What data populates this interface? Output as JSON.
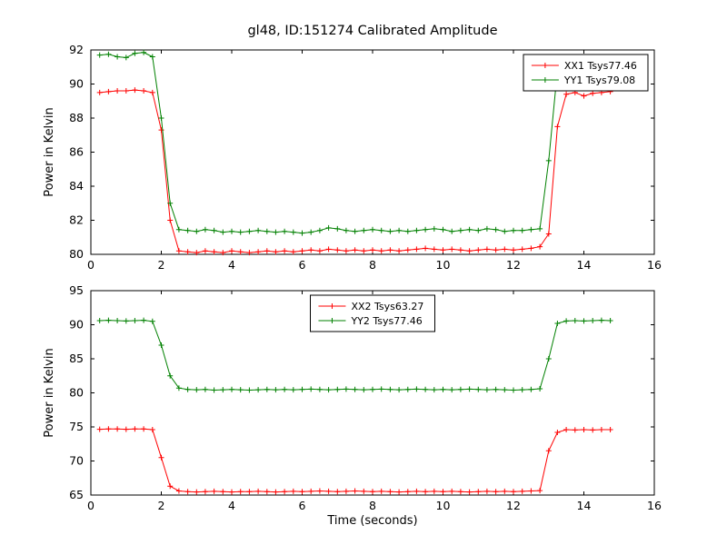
{
  "figure": {
    "title": "gl48, ID:151274 Calibrated Amplitude",
    "background": "#ffffff",
    "frame_color": "#000000"
  },
  "chart_data": [
    {
      "type": "line",
      "title": "gl48, ID:151274 Calibrated Amplitude",
      "xlabel": "",
      "ylabel": "Power in Kelvin",
      "xlim": [
        0,
        16
      ],
      "ylim": [
        80,
        92
      ],
      "xticks": [
        0,
        2,
        4,
        6,
        8,
        10,
        12,
        14,
        16
      ],
      "yticks": [
        80,
        82,
        84,
        86,
        88,
        90,
        92
      ],
      "grid": false,
      "legend_location": "upper right",
      "x": [
        0.25,
        0.5,
        0.75,
        1,
        1.25,
        1.5,
        1.75,
        2,
        2.25,
        2.5,
        2.75,
        3,
        3.25,
        3.5,
        3.75,
        4,
        4.25,
        4.5,
        4.75,
        5,
        5.25,
        5.5,
        5.75,
        6,
        6.25,
        6.5,
        6.75,
        7,
        7.25,
        7.5,
        7.75,
        8,
        8.25,
        8.5,
        8.75,
        9,
        9.25,
        9.5,
        9.75,
        10,
        10.25,
        10.5,
        10.75,
        11,
        11.25,
        11.5,
        11.75,
        12,
        12.25,
        12.5,
        12.75,
        13,
        13.25,
        13.5,
        13.75,
        14,
        14.25,
        14.5,
        14.75
      ],
      "series": [
        {
          "name": "XX1 Tsys77.46",
          "color": "#ff0000",
          "marker": "+",
          "values": [
            89.5,
            89.55,
            89.6,
            89.6,
            89.65,
            89.6,
            89.5,
            87.3,
            82.0,
            80.2,
            80.15,
            80.1,
            80.2,
            80.15,
            80.1,
            80.2,
            80.15,
            80.1,
            80.15,
            80.2,
            80.15,
            80.2,
            80.15,
            80.2,
            80.25,
            80.2,
            80.3,
            80.25,
            80.2,
            80.25,
            80.2,
            80.25,
            80.2,
            80.25,
            80.2,
            80.25,
            80.3,
            80.35,
            80.3,
            80.25,
            80.3,
            80.25,
            80.2,
            80.25,
            80.3,
            80.25,
            80.3,
            80.25,
            80.3,
            80.35,
            80.45,
            81.2,
            87.5,
            89.4,
            89.5,
            89.3,
            89.45,
            89.5,
            89.55
          ]
        },
        {
          "name": "YY1 Tsys79.08",
          "color": "#008000",
          "marker": "+",
          "values": [
            91.7,
            91.75,
            91.6,
            91.55,
            91.8,
            91.85,
            91.6,
            88.0,
            83.0,
            81.45,
            81.4,
            81.35,
            81.45,
            81.4,
            81.3,
            81.35,
            81.3,
            81.35,
            81.4,
            81.35,
            81.3,
            81.35,
            81.3,
            81.25,
            81.3,
            81.4,
            81.55,
            81.5,
            81.4,
            81.35,
            81.4,
            81.45,
            81.4,
            81.35,
            81.4,
            81.35,
            81.4,
            81.45,
            81.5,
            81.45,
            81.35,
            81.4,
            81.45,
            81.4,
            81.5,
            81.45,
            81.35,
            81.4,
            81.4,
            81.45,
            81.5,
            85.5,
            90.8,
            91.4,
            91.5,
            91.45,
            91.5,
            91.55,
            91.5
          ]
        }
      ]
    },
    {
      "type": "line",
      "title": "",
      "xlabel": "Time (seconds)",
      "ylabel": "Power in Kelvin",
      "xlim": [
        0,
        16
      ],
      "ylim": [
        65,
        95
      ],
      "xticks": [
        0,
        2,
        4,
        6,
        8,
        10,
        12,
        14,
        16
      ],
      "yticks": [
        65,
        70,
        75,
        80,
        85,
        90,
        95
      ],
      "grid": false,
      "legend_location": "upper center",
      "x": [
        0.25,
        0.5,
        0.75,
        1,
        1.25,
        1.5,
        1.75,
        2,
        2.25,
        2.5,
        2.75,
        3,
        3.25,
        3.5,
        3.75,
        4,
        4.25,
        4.5,
        4.75,
        5,
        5.25,
        5.5,
        5.75,
        6,
        6.25,
        6.5,
        6.75,
        7,
        7.25,
        7.5,
        7.75,
        8,
        8.25,
        8.5,
        8.75,
        9,
        9.25,
        9.5,
        9.75,
        10,
        10.25,
        10.5,
        10.75,
        11,
        11.25,
        11.5,
        11.75,
        12,
        12.25,
        12.5,
        12.75,
        13,
        13.25,
        13.5,
        13.75,
        14,
        14.25,
        14.5,
        14.75
      ],
      "series": [
        {
          "name": "XX2 Tsys63.27",
          "color": "#ff0000",
          "marker": "+",
          "values": [
            74.65,
            74.7,
            74.7,
            74.65,
            74.7,
            74.7,
            74.6,
            70.5,
            66.3,
            65.6,
            65.5,
            65.45,
            65.5,
            65.55,
            65.5,
            65.45,
            65.5,
            65.5,
            65.55,
            65.5,
            65.45,
            65.5,
            65.55,
            65.5,
            65.55,
            65.6,
            65.55,
            65.5,
            65.55,
            65.6,
            65.55,
            65.5,
            65.55,
            65.5,
            65.45,
            65.5,
            65.55,
            65.5,
            65.55,
            65.5,
            65.55,
            65.5,
            65.45,
            65.5,
            65.55,
            65.5,
            65.55,
            65.5,
            65.55,
            65.6,
            65.65,
            71.5,
            74.2,
            74.6,
            74.55,
            74.6,
            74.55,
            74.6,
            74.6
          ]
        },
        {
          "name": "YY2 Tsys77.46",
          "color": "#008000",
          "marker": "+",
          "values": [
            90.6,
            90.65,
            90.6,
            90.55,
            90.6,
            90.65,
            90.5,
            87.0,
            82.5,
            80.7,
            80.5,
            80.45,
            80.5,
            80.4,
            80.45,
            80.5,
            80.45,
            80.4,
            80.45,
            80.5,
            80.45,
            80.5,
            80.45,
            80.5,
            80.55,
            80.5,
            80.45,
            80.5,
            80.55,
            80.5,
            80.45,
            80.5,
            80.55,
            80.5,
            80.45,
            80.5,
            80.55,
            80.5,
            80.45,
            80.5,
            80.45,
            80.5,
            80.55,
            80.5,
            80.45,
            80.5,
            80.45,
            80.4,
            80.45,
            80.5,
            80.6,
            85.0,
            90.2,
            90.55,
            90.6,
            90.55,
            90.6,
            90.65,
            90.6
          ]
        }
      ]
    }
  ]
}
